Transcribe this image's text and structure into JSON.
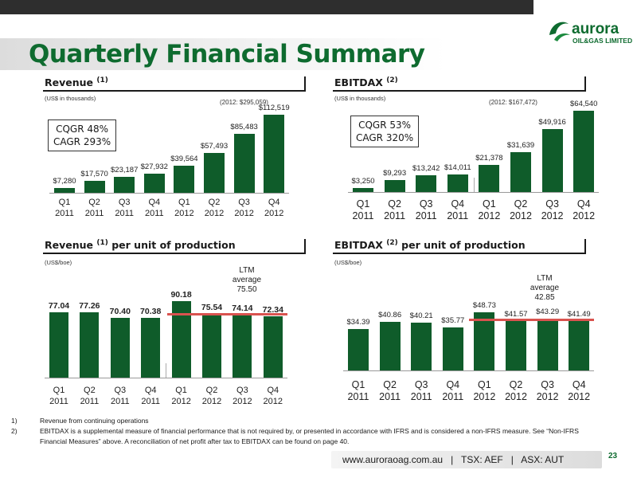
{
  "page": {
    "title": "Quarterly Financial Summary",
    "website": "www.auroraoag.com.au",
    "sep": "|",
    "tsx": "TSX: AEF",
    "asx": "ASX: AUT",
    "page_number": "23"
  },
  "logo": {
    "name": "aurora",
    "subtitle": "OIL&GAS LIMITED"
  },
  "colors": {
    "brand_green": "#0e6b2f",
    "bar_green": "#0f5c2a",
    "avg_line": "#d9534f"
  },
  "revenue": {
    "title": "Revenue",
    "title_sup": "(1)",
    "units": "(US$ in thousands)",
    "total_2012": "(2012: $295,059)",
    "growth_1": "CQGR 48%",
    "growth_2": "CAGR 293%"
  },
  "ebitdax": {
    "title": "EBITDAX",
    "title_sup": "(2)",
    "units": "(US$ in thousands)",
    "total_2012": "(2012: $167,472)",
    "growth_1": "CQGR 53%",
    "growth_2": "CAGR 320%"
  },
  "rev_unit": {
    "title_a": "Revenue",
    "title_sup": "(1)",
    "title_b": "per unit of production",
    "units": "(US$/boe)",
    "ltm_1": "LTM",
    "ltm_2": "average",
    "ltm_3": "75.50"
  },
  "ebitdax_unit": {
    "title_a": "EBITDAX",
    "title_sup": "(2)",
    "title_b": "per unit of production",
    "units": "(US$/boe)",
    "ltm_1": "LTM",
    "ltm_2": "average",
    "ltm_3": "42.85"
  },
  "footnotes": [
    {
      "num": "1)",
      "text": "Revenue from continuing operations"
    },
    {
      "num": "2)",
      "text": "EBITDAX is a supplemental measure of financial performance that is not required by, or presented in accordance with IFRS and is considered a non-IFRS measure. See “Non-IFRS Financial Measures” above. A reconciliation of net profit after tax to EBITDAX can be found on page 40."
    }
  ],
  "chart_data": [
    {
      "type": "bar",
      "title": "Revenue (1)",
      "ylabel": "(US$ in thousands)",
      "categories": [
        "Q1 2011",
        "Q2 2011",
        "Q3 2011",
        "Q4 2011",
        "Q1 2012",
        "Q2 2012",
        "Q3 2012",
        "Q4 2012"
      ],
      "values": [
        7280,
        17570,
        23187,
        27932,
        39564,
        57493,
        85483,
        112519
      ],
      "labels": [
        "$7,280",
        "$17,570",
        "$23,187",
        "$27,932",
        "$39,564",
        "$57,493",
        "$85,483",
        "$112,519"
      ],
      "ylim": [
        0,
        115000
      ]
    },
    {
      "type": "bar",
      "title": "EBITDAX (2)",
      "ylabel": "(US$ in thousands)",
      "categories": [
        "Q1 2011",
        "Q2 2011",
        "Q3 2011",
        "Q4 2011",
        "Q1 2012",
        "Q2 2012",
        "Q3 2012",
        "Q4 2012"
      ],
      "values": [
        3250,
        9293,
        13242,
        14011,
        21378,
        31639,
        49916,
        64540
      ],
      "labels": [
        "$3,250",
        "$9,293",
        "$13,242",
        "$14,011",
        "$21,378",
        "$31,639",
        "$49,916",
        "$64,540"
      ],
      "ylim": [
        0,
        66000
      ]
    },
    {
      "type": "bar",
      "title": "Revenue (1) per unit of production",
      "ylabel": "(US$/boe)",
      "categories": [
        "Q1 2011",
        "Q2 2011",
        "Q3 2011",
        "Q4 2011",
        "Q1 2012",
        "Q2 2012",
        "Q3 2012",
        "Q4 2012"
      ],
      "values": [
        77.04,
        77.26,
        70.4,
        70.38,
        90.18,
        75.54,
        74.14,
        72.34
      ],
      "labels": [
        "77.04",
        "77.26",
        "70.40",
        "70.38",
        "90.18",
        "75.54",
        "74.14",
        "72.34"
      ],
      "ltm_average": 75.5,
      "ylim": [
        0,
        92
      ]
    },
    {
      "type": "bar",
      "title": "EBITDAX (2) per unit of production",
      "ylabel": "(US$/boe)",
      "categories": [
        "Q1 2011",
        "Q2 2011",
        "Q3 2011",
        "Q4 2011",
        "Q1 2012",
        "Q2 2012",
        "Q3 2012",
        "Q4 2012"
      ],
      "values": [
        34.39,
        40.86,
        40.21,
        35.77,
        48.73,
        41.57,
        43.29,
        41.49
      ],
      "labels": [
        "$34.39",
        "$40.86",
        "$40.21",
        "$35.77",
        "$48.73",
        "$41.57",
        "$43.29",
        "$41.49"
      ],
      "ltm_average": 42.85,
      "ylim": [
        0,
        50
      ]
    }
  ]
}
